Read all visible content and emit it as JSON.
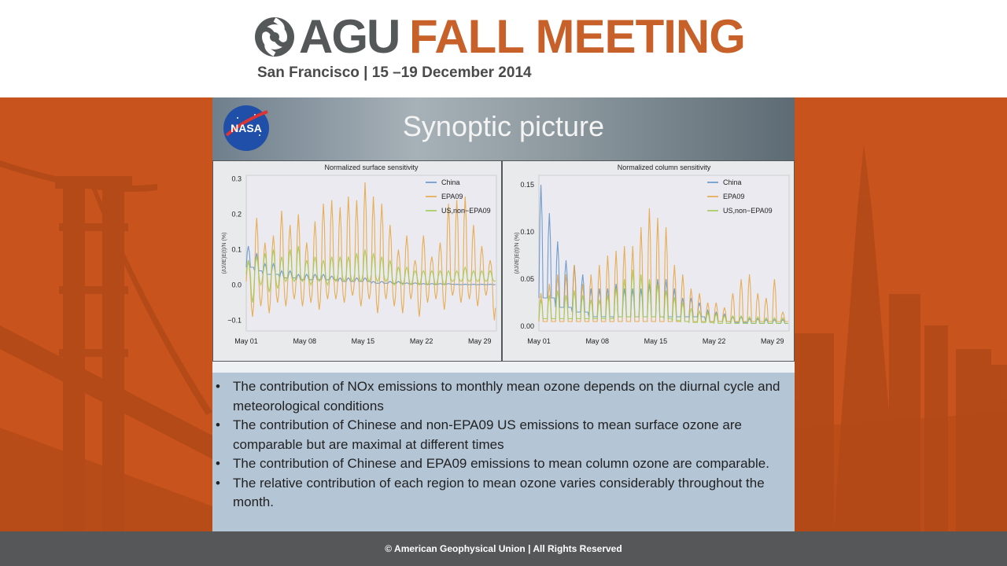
{
  "header": {
    "brand": "AGU",
    "event": "FALL MEETING",
    "subtitle": "San Francisco  |  15 –19 December 2014"
  },
  "slide": {
    "title": "Synoptic picture",
    "logo_text": "NASA",
    "bullets": [
      "The contribution of NOx emissions to monthly mean ozone depends on the diurnal cycle and meteorological conditions",
      "The contribution of Chinese and non-EPA09 US emissions to mean surface ozone are comparable but are maximal at different times",
      "The contribution of Chinese and EPA09 emissions to mean column ozone are comparable.",
      "The relative contribution of each region to mean ozone varies considerably throughout the month."
    ]
  },
  "footer": {
    "text": "© American Geophysical Union | All Rights Reserved"
  },
  "colors": {
    "orange": "#c8602a",
    "china": "#5b8fc8",
    "epa09": "#e8a23a",
    "us_non_epa09": "#9ccb4c"
  },
  "chart_data": [
    {
      "type": "line",
      "title": "Normalized surface sensitivity",
      "ylabel": "(∂J/∂E)E(t)/N (%)",
      "xlabel": "",
      "xticks": [
        "May 01",
        "May 08",
        "May 15",
        "May 22",
        "May 29"
      ],
      "xlim": [
        0,
        30
      ],
      "ylim": [
        -0.13,
        0.31
      ],
      "yticks": [
        0.3,
        0.2,
        0.1,
        0.0,
        -0.1
      ],
      "ytick_labels": [
        "0.3",
        "0.2",
        "0.1",
        "0.0",
        "−0.1"
      ],
      "legend_position": "top-right",
      "series": [
        {
          "name": "China",
          "color": "#5b8fc8",
          "base": [
            0.05,
            0.04,
            0.03,
            0.03,
            0.02,
            0.02,
            0.015,
            0.015,
            0.015,
            0.015,
            0.015,
            0.01,
            0.01,
            0.01,
            0.01,
            0.005,
            0.005,
            0.005,
            0.005,
            0.003,
            0.003,
            0.002,
            0.002,
            0.002,
            0.002,
            0.001,
            0.001,
            0.001,
            0.001,
            0.001
          ],
          "amp": [
            0.06,
            0.05,
            0.03,
            0.03,
            0.02,
            0.02,
            0.015,
            0.015,
            0.015,
            0.015,
            0.01,
            0.01,
            0.01,
            0.01,
            0.01,
            0.005,
            0.005,
            0.005,
            0.005,
            0.003,
            0.003,
            0.002,
            0.002,
            0.002,
            0.002,
            0.001,
            0.001,
            0.001,
            0.001,
            0.001
          ],
          "neg": [
            0.0,
            0.0,
            0.0,
            0.0,
            0.0,
            0.0,
            0.0,
            0.0,
            0.0,
            0.0,
            0.0,
            0.0,
            0.0,
            0.0,
            0.0,
            0.0,
            0.0,
            0.0,
            0.0,
            0.0,
            0.0,
            0.0,
            0.0,
            0.0,
            0.0,
            0.0,
            0.0,
            0.0,
            0.0,
            0.0
          ]
        },
        {
          "name": "EPA09",
          "color": "#e8a23a",
          "base": [
            0.01,
            0.02,
            0.02,
            0.02,
            0.02,
            0.02,
            0.02,
            0.02,
            0.02,
            0.02,
            0.02,
            0.02,
            0.02,
            0.02,
            0.02,
            0.02,
            0.02,
            0.02,
            0.02,
            0.02,
            0.02,
            0.02,
            0.02,
            0.02,
            0.02,
            0.02,
            0.02,
            0.02,
            0.02,
            0.02
          ],
          "amp": [
            0.06,
            0.17,
            0.1,
            0.12,
            0.19,
            0.15,
            0.18,
            0.1,
            0.16,
            0.21,
            0.22,
            0.2,
            0.23,
            0.22,
            0.27,
            0.23,
            0.21,
            0.15,
            0.08,
            0.12,
            0.05,
            0.12,
            0.06,
            0.1,
            0.21,
            0.22,
            0.23,
            0.15,
            0.09,
            0.05
          ],
          "neg": [
            0.1,
            0.08,
            0.1,
            0.07,
            0.08,
            0.06,
            0.08,
            0.07,
            0.09,
            0.06,
            0.06,
            0.07,
            0.05,
            0.08,
            0.06,
            0.1,
            0.06,
            0.08,
            0.1,
            0.06,
            0.11,
            0.07,
            0.06,
            0.09,
            0.05,
            0.07,
            0.06,
            0.08,
            0.05,
            0.12
          ]
        },
        {
          "name": "US,non−EPA09",
          "color": "#9ccb4c",
          "base": [
            0.03,
            0.03,
            0.03,
            0.03,
            0.03,
            0.03,
            0.03,
            0.03,
            0.03,
            0.03,
            0.03,
            0.03,
            0.03,
            0.03,
            0.03,
            0.03,
            0.03,
            0.02,
            0.02,
            0.02,
            0.02,
            0.02,
            0.02,
            0.02,
            0.02,
            0.02,
            0.02,
            0.02,
            0.02,
            0.02
          ],
          "amp": [
            0.04,
            0.05,
            0.06,
            0.07,
            0.05,
            0.07,
            0.08,
            0.04,
            0.05,
            0.04,
            0.05,
            0.05,
            0.05,
            0.06,
            0.07,
            0.06,
            0.05,
            0.05,
            0.03,
            0.03,
            0.02,
            0.02,
            0.02,
            0.02,
            0.02,
            0.02,
            0.03,
            0.02,
            0.02,
            0.02
          ],
          "neg": [
            0.08,
            0.03,
            0.05,
            0.04,
            0.02,
            0.02,
            0.02,
            0.03,
            0.02,
            0.03,
            0.02,
            0.02,
            0.02,
            0.02,
            0.02,
            0.02,
            0.02,
            0.02,
            0.02,
            0.02,
            0.02,
            0.02,
            0.02,
            0.02,
            0.01,
            0.01,
            0.01,
            0.01,
            0.01,
            0.01
          ]
        }
      ]
    },
    {
      "type": "line",
      "title": "Normalized column sensitivity",
      "ylabel": "(∂J/∂E)E(t)/N (%)",
      "xlabel": "",
      "xticks": [
        "May 01",
        "May 08",
        "May 15",
        "May 22",
        "May 29"
      ],
      "xlim": [
        0,
        30
      ],
      "ylim": [
        -0.005,
        0.16
      ],
      "yticks": [
        0.15,
        0.1,
        0.05,
        0.0
      ],
      "ytick_labels": [
        "0.15",
        "0.10",
        "0.05",
        "0.00"
      ],
      "legend_position": "top-right",
      "series": [
        {
          "name": "China",
          "color": "#5b8fc8",
          "base": [
            0.03,
            0.03,
            0.02,
            0.02,
            0.015,
            0.015,
            0.01,
            0.01,
            0.01,
            0.01,
            0.01,
            0.01,
            0.01,
            0.01,
            0.01,
            0.01,
            0.01,
            0.01,
            0.01,
            0.01,
            0.005,
            0.005,
            0.005,
            0.004,
            0.004,
            0.003,
            0.003,
            0.003,
            0.003,
            0.003
          ],
          "amp": [
            0.12,
            0.09,
            0.07,
            0.05,
            0.05,
            0.04,
            0.03,
            0.03,
            0.03,
            0.035,
            0.03,
            0.03,
            0.03,
            0.035,
            0.04,
            0.04,
            0.03,
            0.02,
            0.02,
            0.015,
            0.012,
            0.01,
            0.008,
            0.006,
            0.006,
            0.005,
            0.005,
            0.004,
            0.004,
            0.004
          ],
          "neg": [
            0.0,
            0.0,
            0.0,
            0.0,
            0.0,
            0.0,
            0.0,
            0.0,
            0.0,
            0.0,
            0.0,
            0.0,
            0.0,
            0.0,
            0.0,
            0.0,
            0.0,
            0.0,
            0.0,
            0.0,
            0.0,
            0.0,
            0.0,
            0.0,
            0.0,
            0.0,
            0.0,
            0.0,
            0.0,
            0.0
          ]
        },
        {
          "name": "EPA09",
          "color": "#e8a23a",
          "base": [
            0.005,
            0.005,
            0.005,
            0.005,
            0.005,
            0.005,
            0.005,
            0.005,
            0.005,
            0.005,
            0.005,
            0.005,
            0.005,
            0.005,
            0.005,
            0.005,
            0.005,
            0.005,
            0.005,
            0.005,
            0.005,
            0.005,
            0.005,
            0.005,
            0.005,
            0.005,
            0.005,
            0.005,
            0.005,
            0.005
          ],
          "amp": [
            0.03,
            0.04,
            0.05,
            0.05,
            0.06,
            0.04,
            0.05,
            0.06,
            0.07,
            0.075,
            0.08,
            0.08,
            0.1,
            0.12,
            0.11,
            0.1,
            0.06,
            0.05,
            0.035,
            0.03,
            0.02,
            0.02,
            0.015,
            0.03,
            0.045,
            0.05,
            0.03,
            0.025,
            0.045,
            0.01
          ],
          "neg": [
            0.0,
            0.0,
            0.0,
            0.0,
            0.0,
            0.0,
            0.0,
            0.0,
            0.0,
            0.0,
            0.0,
            0.0,
            0.0,
            0.0,
            0.0,
            0.0,
            0.0,
            0.0,
            0.0,
            0.0,
            0.0,
            0.0,
            0.0,
            0.0,
            0.0,
            0.0,
            0.0,
            0.0,
            0.0,
            0.0
          ]
        },
        {
          "name": "US,non−EPA09",
          "color": "#9ccb4c",
          "base": [
            0.008,
            0.008,
            0.008,
            0.008,
            0.008,
            0.008,
            0.008,
            0.008,
            0.008,
            0.01,
            0.01,
            0.01,
            0.01,
            0.01,
            0.01,
            0.008,
            0.006,
            0.005,
            0.004,
            0.004,
            0.004,
            0.003,
            0.003,
            0.003,
            0.003,
            0.003,
            0.003,
            0.003,
            0.003,
            0.003
          ],
          "amp": [
            0.02,
            0.025,
            0.03,
            0.025,
            0.03,
            0.025,
            0.02,
            0.02,
            0.025,
            0.03,
            0.04,
            0.05,
            0.045,
            0.04,
            0.035,
            0.03,
            0.025,
            0.02,
            0.015,
            0.012,
            0.01,
            0.01,
            0.008,
            0.008,
            0.008,
            0.007,
            0.007,
            0.006,
            0.006,
            0.006
          ],
          "neg": [
            0.0,
            0.0,
            0.0,
            0.0,
            0.0,
            0.0,
            0.0,
            0.0,
            0.0,
            0.0,
            0.0,
            0.0,
            0.0,
            0.0,
            0.0,
            0.0,
            0.0,
            0.0,
            0.0,
            0.0,
            0.0,
            0.0,
            0.0,
            0.0,
            0.0,
            0.0,
            0.0,
            0.0,
            0.0,
            0.0
          ]
        }
      ]
    }
  ]
}
